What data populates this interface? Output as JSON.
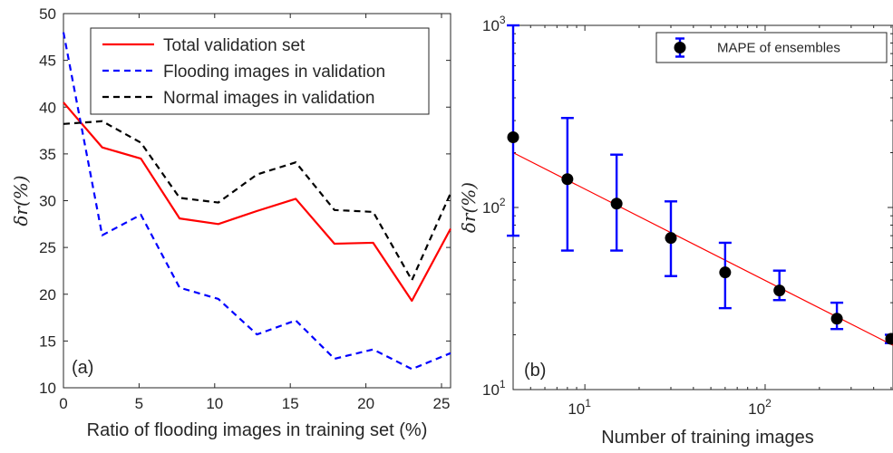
{
  "chart_data": [
    {
      "type": "line",
      "panel_label": "(a)",
      "xlabel": "Ratio of flooding images in training set (%)",
      "ylabel": "δr(%)",
      "xlim": [
        0,
        25.6
      ],
      "ylim": [
        10,
        50
      ],
      "x_ticks": [
        0,
        5,
        10,
        15,
        20,
        25
      ],
      "x_tick_labels": [
        "0",
        "5",
        "10",
        "15",
        "20",
        "25"
      ],
      "y_ticks": [
        10,
        15,
        20,
        25,
        30,
        35,
        40,
        45,
        50
      ],
      "y_tick_labels": [
        "10",
        "15",
        "20",
        "25",
        "30",
        "35",
        "40",
        "45",
        "50"
      ],
      "grid": false,
      "legend_position": "top-right",
      "x": [
        0,
        2.56,
        5.12,
        7.68,
        10.24,
        12.8,
        15.36,
        17.92,
        20.48,
        23.04,
        25.6
      ],
      "series": [
        {
          "name": "Total validation set",
          "color": "#ff0000",
          "dash": "solid",
          "values": [
            40.5,
            35.7,
            34.5,
            28.1,
            27.5,
            28.9,
            30.2,
            25.4,
            25.5,
            19.3,
            27.0
          ]
        },
        {
          "name": "Flooding images in validation",
          "color": "#0000ff",
          "dash": "dashed",
          "values": [
            48.0,
            26.3,
            28.5,
            20.7,
            19.5,
            15.7,
            17.2,
            13.1,
            14.1,
            12.0,
            13.7
          ]
        },
        {
          "name": "Normal images in validation",
          "color": "#000000",
          "dash": "dashed",
          "values": [
            38.2,
            38.5,
            36.2,
            30.3,
            29.8,
            32.8,
            34.1,
            29.0,
            28.8,
            21.5,
            30.8
          ]
        }
      ]
    },
    {
      "type": "scatter",
      "panel_label": "(b)",
      "xlabel": "Number of training images",
      "ylabel": "δr(%)",
      "xscale": "log",
      "yscale": "log",
      "xlim": [
        4,
        512
      ],
      "ylim": [
        10,
        1000
      ],
      "x_ticks": [
        10,
        100
      ],
      "x_tick_labels": [
        [
          "10",
          "1"
        ],
        [
          "10",
          "2"
        ]
      ],
      "y_ticks": [
        10,
        100,
        1000
      ],
      "y_tick_labels": [
        [
          "10",
          "1"
        ],
        [
          "10",
          "2"
        ],
        [
          "10",
          "3"
        ]
      ],
      "grid": false,
      "legend_position": "top-right",
      "series": [
        {
          "name": "MAPE of ensembles",
          "marker_color": "#000000",
          "errorbar_color": "#0000ff",
          "points": [
            {
              "x": 4,
              "y": 243,
              "ylow": 70,
              "yhigh": 1000
            },
            {
              "x": 8,
              "y": 143,
              "ylow": 58,
              "yhigh": 310
            },
            {
              "x": 15,
              "y": 105,
              "ylow": 58,
              "yhigh": 195
            },
            {
              "x": 30,
              "y": 68,
              "ylow": 42,
              "yhigh": 108
            },
            {
              "x": 60,
              "y": 44,
              "ylow": 28,
              "yhigh": 64
            },
            {
              "x": 120,
              "y": 35,
              "ylow": 31,
              "yhigh": 45
            },
            {
              "x": 250,
              "y": 24.5,
              "ylow": 21.5,
              "yhigh": 30
            },
            {
              "x": 500,
              "y": 19,
              "ylow": 18,
              "yhigh": 20
            }
          ]
        }
      ],
      "fit_line": {
        "color": "#ff0000",
        "points": [
          {
            "x": 4,
            "y": 200
          },
          {
            "x": 512,
            "y": 17.5
          }
        ]
      }
    }
  ]
}
